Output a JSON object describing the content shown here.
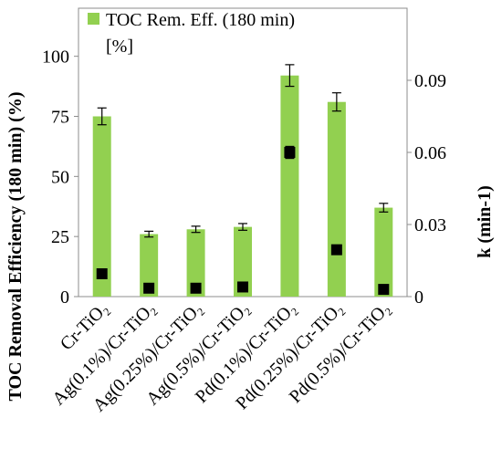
{
  "chart_data": {
    "type": "bar",
    "title": "",
    "categories": [
      "Cr-TiO₂",
      "Ag(0.1%)/Cr-TiO₂",
      "Ag(0.25%)/Cr-TiO₂",
      "Ag(0.5%)/Cr-TiO₂",
      "Pd(0.1%)/Cr-TiO₂",
      "Pd(0.25%)/Cr-TiO₂",
      "Pd(0.5%)/Cr-TiO₂"
    ],
    "series": [
      {
        "name": "TOC Rem. Eff. (180 min) [%]",
        "axis": "left",
        "mark": "bar",
        "color": "#92d050",
        "values": [
          75,
          26,
          28,
          29,
          92,
          81,
          37
        ],
        "error": [
          3.5,
          1.2,
          1.3,
          1.4,
          4.5,
          3.8,
          1.8
        ]
      },
      {
        "name": "",
        "axis": "right",
        "mark": "square",
        "color": "#000000",
        "values": [
          0.0095,
          0.0035,
          0.0035,
          0.004,
          0.06,
          0.0195,
          0.003
        ],
        "error": [
          0,
          0,
          0,
          0,
          0.0025,
          0,
          0
        ]
      }
    ],
    "ylabel": "TOC Removal Efficiency (180 min) (%)",
    "y2label": "k (min-1)",
    "ylim": [
      0,
      120
    ],
    "y2lim": [
      0,
      0.12
    ],
    "yticks": [
      "0",
      "25",
      "50",
      "75",
      "100"
    ],
    "yticks_values": [
      0,
      25,
      50,
      75,
      100
    ],
    "y2ticks": [
      "0",
      "0.03",
      "0.06",
      "0.09"
    ],
    "y2ticks_values": [
      0,
      0.03,
      0.06,
      0.09
    ],
    "legend": {
      "position": "top-left-inside",
      "line1": "TOC Rem. Eff. (180 min)",
      "line2": "[%]"
    },
    "grid": false
  }
}
